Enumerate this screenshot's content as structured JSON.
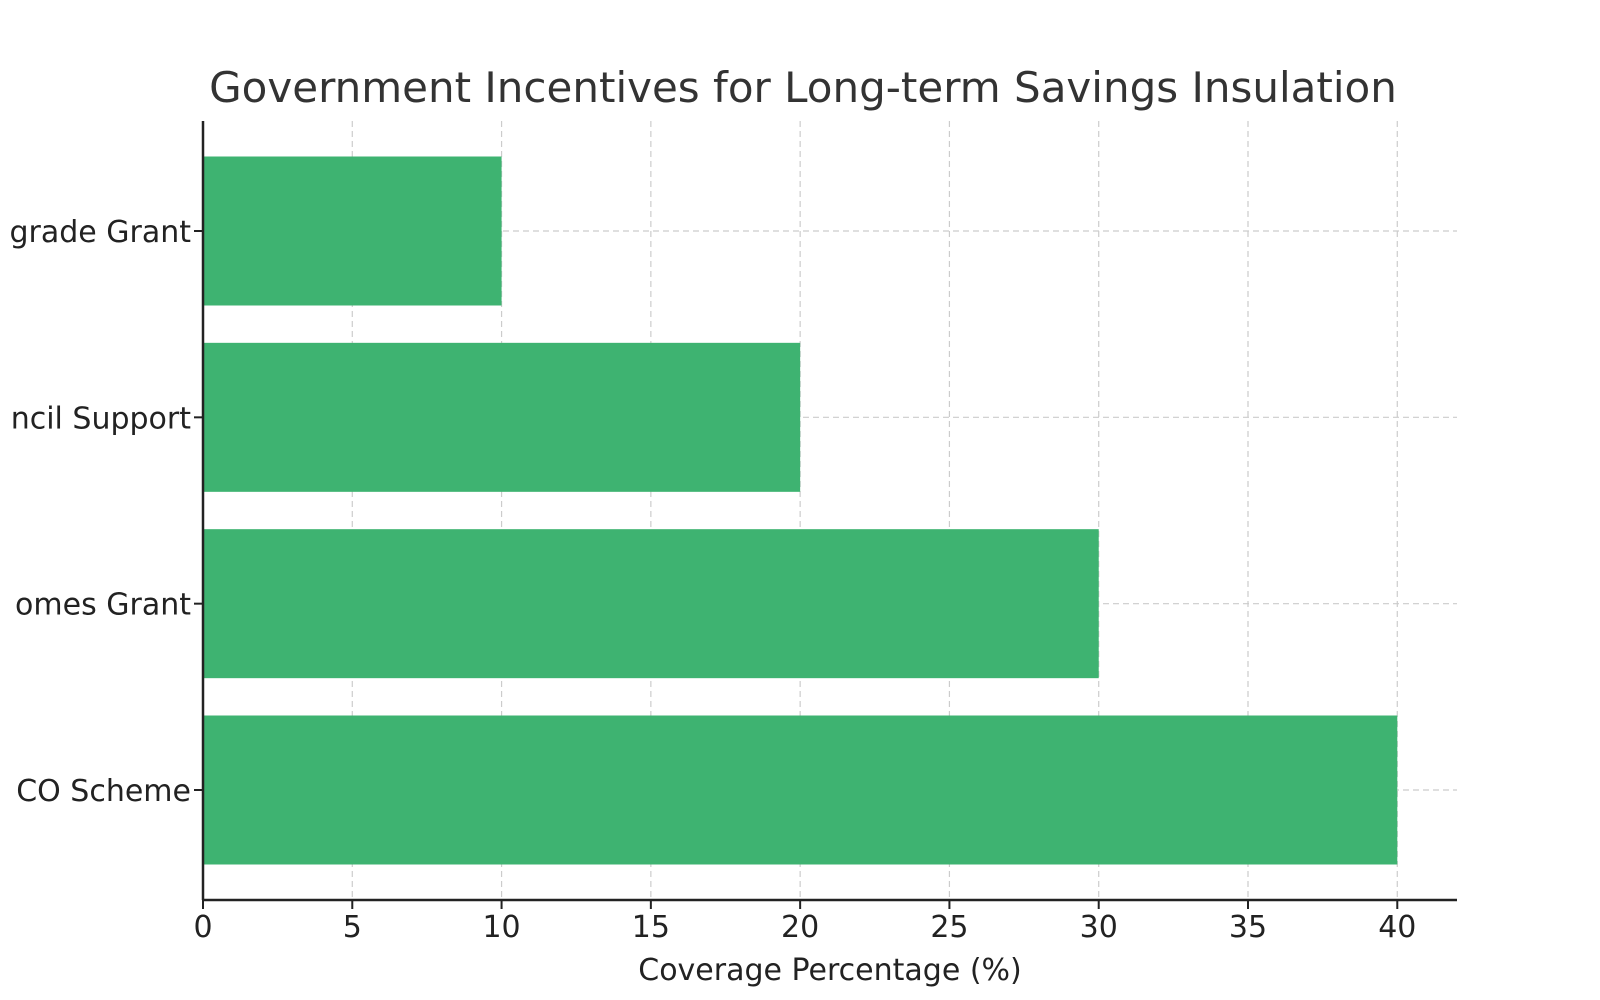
{
  "chart_data": {
    "type": "bar",
    "orientation": "horizontal",
    "title": "Government Incentives for Long-term Savings Insulation",
    "xlabel": "Coverage Percentage (%)",
    "ylabel": "",
    "categories": [
      "ECO Scheme",
      "Warm Homes Grant",
      "Local Council Support",
      "Home Upgrade Grant"
    ],
    "category_labels_visible": [
      "CO Scheme",
      "omes Grant",
      "ncil Support",
      "grade Grant"
    ],
    "values": [
      40,
      30,
      20,
      10
    ],
    "xlim": [
      0,
      42
    ],
    "xticks": [
      "0",
      "5",
      "10",
      "15",
      "20",
      "25",
      "30",
      "35",
      "40"
    ],
    "grid": true,
    "bar_color": "#3eb371"
  }
}
